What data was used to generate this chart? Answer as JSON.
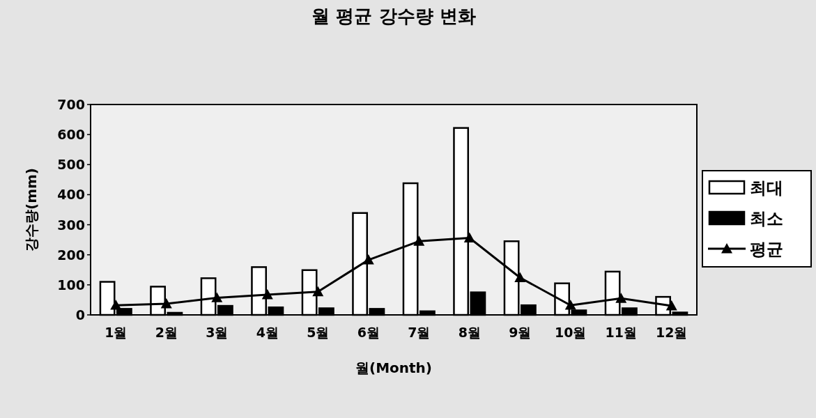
{
  "chart_data": {
    "type": "bar",
    "title": "월 평균 강수량 변화",
    "xlabel": "월(Month)",
    "ylabel": "강수량(mm)",
    "categories": [
      "1월",
      "2월",
      "3월",
      "4월",
      "5월",
      "6월",
      "7월",
      "8월",
      "9월",
      "10월",
      "11월",
      "12월"
    ],
    "series": [
      {
        "name": "최대",
        "color": "#ffffff",
        "values": [
          110,
          94,
          122,
          159,
          149,
          339,
          438,
          622,
          245,
          105,
          144,
          60
        ]
      },
      {
        "name": "최소",
        "color": "#000000",
        "values": [
          20,
          7,
          30,
          25,
          22,
          20,
          12,
          75,
          32,
          15,
          22,
          8
        ]
      },
      {
        "name": "평균",
        "type": "line",
        "color": "#000000",
        "marker": "triangle",
        "values": [
          32,
          37,
          57,
          67,
          77,
          183,
          245,
          256,
          124,
          32,
          55,
          30
        ]
      }
    ],
    "ylim": [
      0,
      700
    ],
    "yticks": [
      0,
      100,
      200,
      300,
      400,
      500,
      600,
      700
    ],
    "legend": "right"
  }
}
